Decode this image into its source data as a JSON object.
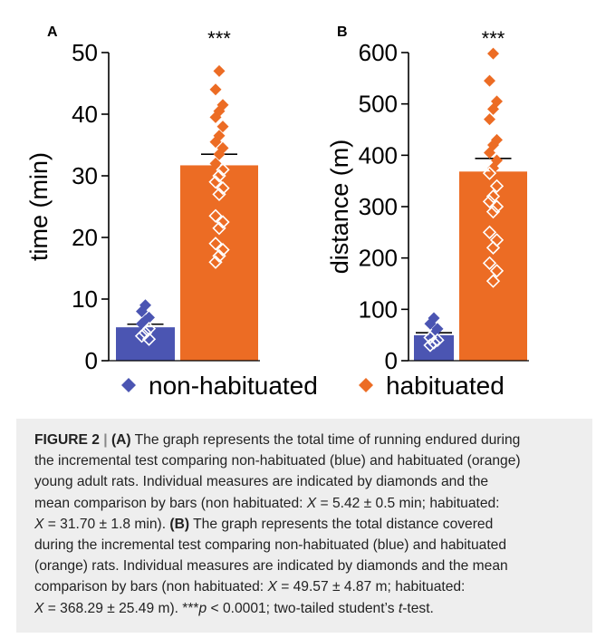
{
  "colors": {
    "non_habituated": "#4b55b2",
    "habituated": "#ec6c24",
    "caption_bg": "#eeeeee"
  },
  "legend": {
    "items": [
      {
        "label": "non-habituated",
        "color": "#4b55b2"
      },
      {
        "label": "habituated",
        "color": "#ec6c24"
      }
    ]
  },
  "chart_data": [
    {
      "panel": "A",
      "type": "bar",
      "ylabel": "time (min)",
      "ylim": [
        0,
        50
      ],
      "yticks": [
        0,
        10,
        20,
        30,
        40,
        50
      ],
      "significance": "***",
      "series": [
        {
          "name": "non-habituated",
          "mean": 5.42,
          "sem": 0.5,
          "points": [
            9.0,
            8.0,
            7.0,
            6.5,
            6.0,
            5.2,
            4.5,
            4.0,
            3.5
          ]
        },
        {
          "name": "habituated",
          "mean": 31.7,
          "sem": 1.8,
          "points": [
            47.0,
            44.0,
            41.5,
            40.5,
            39.5,
            38.0,
            36.5,
            35.5,
            34.5,
            33.5,
            32.0,
            31.0,
            30.0,
            29.0,
            28.0,
            27.0,
            23.5,
            22.5,
            21.5,
            19.0,
            18.0,
            17.0,
            16.0
          ]
        }
      ]
    },
    {
      "panel": "B",
      "type": "bar",
      "ylabel": "distance (m)",
      "ylim": [
        0,
        600
      ],
      "yticks": [
        0,
        100,
        200,
        300,
        400,
        500,
        600
      ],
      "significance": "***",
      "series": [
        {
          "name": "non-habituated",
          "mean": 49.57,
          "sem": 4.87,
          "points": [
            83,
            72,
            62,
            52,
            45,
            40,
            35,
            30
          ]
        },
        {
          "name": "habituated",
          "mean": 368.29,
          "sem": 25.49,
          "points": [
            598,
            545,
            505,
            490,
            470,
            430,
            420,
            405,
            390,
            375,
            365,
            340,
            320,
            310,
            300,
            290,
            250,
            235,
            220,
            190,
            175,
            155
          ]
        }
      ]
    }
  ],
  "caption": {
    "label": "FIGURE 2",
    "separator": "|",
    "lines": [
      "<b>FIGURE 2 <span class='sep'>|</span> (A)</b> The graph represents the total time of running endured during",
      "the incremental test comparing non-habituated (blue) and habituated (orange)",
      "young adult rats. Individual measures are indicated by diamonds and the",
      "mean comparison by bars (non habituated: <i>X</i> = 5.42 ± 0.5 min; habituated:",
      "<i>X</i> = 31.70 ± 1.8 min). <b>(B)</b> The graph represents the total distance covered",
      "during the incremental test comparing non-habituated (blue) and habituated",
      "(orange) rats. Individual measures are indicated by diamonds and the mean",
      "comparison by bars (non habituated: <i>X</i> = 49.57 ± 4.87 m; habituated:",
      "<i>X</i> = 368.29 ± 25.49 m). ***<i>p</i> &lt; 0.0001; two-tailed student’s <i>t</i>-test."
    ]
  }
}
